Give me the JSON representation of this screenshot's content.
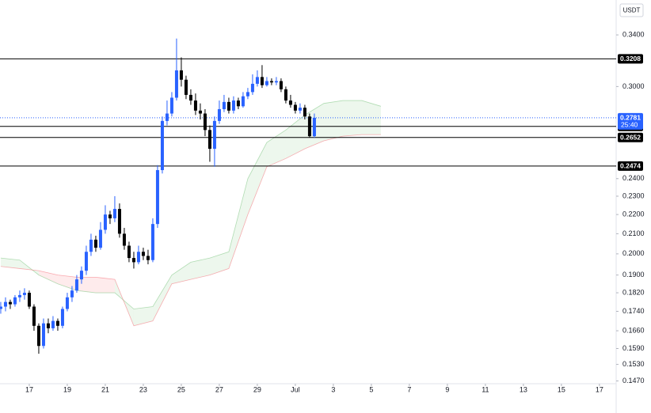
{
  "chart_data": {
    "type": "candlestick",
    "currency": "USDT",
    "log_scale": true,
    "up_color": "#2962ff",
    "down_color": "#000000",
    "ylim": [
      0.146,
      0.37
    ],
    "yticks": [
      {
        "value": 0.34,
        "label": "0.3400"
      },
      {
        "value": 0.3,
        "label": "0.3000"
      },
      {
        "value": 0.24,
        "label": "0.2400"
      },
      {
        "value": 0.23,
        "label": "0.2300"
      },
      {
        "value": 0.22,
        "label": "0.2200"
      },
      {
        "value": 0.21,
        "label": "0.2100"
      },
      {
        "value": 0.2,
        "label": "0.2000"
      },
      {
        "value": 0.19,
        "label": "0.1900"
      },
      {
        "value": 0.182,
        "label": "0.1820"
      },
      {
        "value": 0.174,
        "label": "0.1740"
      },
      {
        "value": 0.166,
        "label": "0.1660"
      },
      {
        "value": 0.159,
        "label": "0.1590"
      },
      {
        "value": 0.153,
        "label": "0.1530"
      },
      {
        "value": 0.147,
        "label": "0.1470"
      }
    ],
    "xlim": [
      15.46,
      47.88
    ],
    "xticks": [
      17,
      19,
      21,
      23,
      25,
      27,
      29,
      {
        "value": 31,
        "label": "Jul"
      },
      {
        "value": 33,
        "label": "3"
      },
      {
        "value": 35,
        "label": "5"
      },
      {
        "value": 37,
        "label": "7"
      },
      {
        "value": 39,
        "label": "9"
      },
      {
        "value": 41,
        "label": "11"
      },
      {
        "value": 43,
        "label": "13"
      },
      {
        "value": 45,
        "label": "15"
      },
      {
        "value": 47,
        "label": "17"
      }
    ],
    "x": [
      15.5,
      15.75,
      16,
      16.25,
      16.5,
      16.75,
      17,
      17.25,
      17.5,
      17.75,
      18,
      18.25,
      18.5,
      18.75,
      19,
      19.25,
      19.5,
      19.75,
      20,
      20.25,
      20.5,
      20.75,
      21,
      21.25,
      21.5,
      21.75,
      22,
      22.25,
      22.5,
      22.75,
      23,
      23.25,
      23.5,
      23.75,
      24,
      24.25,
      24.5,
      24.75,
      25,
      25.25,
      25.5,
      25.75,
      26,
      26.25,
      26.5,
      26.75,
      27,
      27.25,
      27.5,
      27.75,
      28,
      28.25,
      28.5,
      28.75,
      29,
      29.25,
      29.5,
      29.75,
      30,
      30.25,
      30.5,
      30.75,
      31,
      31.25,
      31.5,
      31.75,
      32
    ],
    "open": [
      0.175,
      0.176,
      0.178,
      0.177,
      0.18,
      0.181,
      0.182,
      0.176,
      0.168,
      0.16,
      0.169,
      0.167,
      0.17,
      0.168,
      0.175,
      0.18,
      0.183,
      0.188,
      0.192,
      0.201,
      0.207,
      0.203,
      0.212,
      0.22,
      0.218,
      0.223,
      0.21,
      0.204,
      0.198,
      0.196,
      0.201,
      0.199,
      0.197,
      0.215,
      0.245,
      0.276,
      0.281,
      0.292,
      0.312,
      0.305,
      0.294,
      0.29,
      0.283,
      0.281,
      0.27,
      0.258,
      0.276,
      0.284,
      0.289,
      0.283,
      0.29,
      0.286,
      0.293,
      0.296,
      0.302,
      0.307,
      0.301,
      0.304,
      0.303,
      0.304,
      0.298,
      0.29,
      0.287,
      0.283,
      0.285,
      0.279,
      0.266
    ],
    "high": [
      0.178,
      0.18,
      0.179,
      0.181,
      0.183,
      0.184,
      0.183,
      0.177,
      0.169,
      0.171,
      0.171,
      0.172,
      0.171,
      0.176,
      0.182,
      0.185,
      0.19,
      0.194,
      0.204,
      0.21,
      0.209,
      0.216,
      0.225,
      0.222,
      0.23,
      0.226,
      0.213,
      0.206,
      0.201,
      0.204,
      0.203,
      0.202,
      0.218,
      0.248,
      0.279,
      0.29,
      0.296,
      0.337,
      0.322,
      0.308,
      0.298,
      0.295,
      0.288,
      0.284,
      0.273,
      0.279,
      0.29,
      0.294,
      0.292,
      0.293,
      0.292,
      0.296,
      0.299,
      0.309,
      0.312,
      0.316,
      0.307,
      0.306,
      0.307,
      0.306,
      0.3,
      0.294,
      0.289,
      0.288,
      0.287,
      0.281,
      0.281
    ],
    "low": [
      0.173,
      0.174,
      0.175,
      0.176,
      0.178,
      0.179,
      0.175,
      0.166,
      0.157,
      0.159,
      0.165,
      0.166,
      0.166,
      0.167,
      0.174,
      0.178,
      0.182,
      0.186,
      0.19,
      0.199,
      0.201,
      0.202,
      0.21,
      0.215,
      0.216,
      0.208,
      0.202,
      0.196,
      0.193,
      0.195,
      0.197,
      0.195,
      0.196,
      0.213,
      0.243,
      0.273,
      0.279,
      0.29,
      0.3,
      0.291,
      0.287,
      0.28,
      0.277,
      0.266,
      0.25,
      0.247,
      0.274,
      0.282,
      0.281,
      0.281,
      0.284,
      0.285,
      0.291,
      0.294,
      0.3,
      0.299,
      0.3,
      0.301,
      0.301,
      0.296,
      0.288,
      0.285,
      0.281,
      0.281,
      0.277,
      0.2652,
      0.265
    ],
    "close": [
      0.176,
      0.178,
      0.177,
      0.18,
      0.181,
      0.182,
      0.176,
      0.168,
      0.16,
      0.169,
      0.167,
      0.17,
      0.168,
      0.175,
      0.18,
      0.183,
      0.188,
      0.192,
      0.201,
      0.207,
      0.203,
      0.212,
      0.22,
      0.218,
      0.223,
      0.21,
      0.204,
      0.198,
      0.196,
      0.201,
      0.199,
      0.197,
      0.215,
      0.245,
      0.276,
      0.281,
      0.292,
      0.312,
      0.305,
      0.294,
      0.29,
      0.283,
      0.281,
      0.27,
      0.258,
      0.276,
      0.284,
      0.289,
      0.283,
      0.29,
      0.286,
      0.293,
      0.296,
      0.302,
      0.307,
      0.301,
      0.304,
      0.303,
      0.304,
      0.298,
      0.29,
      0.287,
      0.283,
      0.285,
      0.279,
      0.266,
      0.2781
    ],
    "cloud": {
      "x": [
        15.5,
        16.5,
        17.5,
        18.5,
        19.5,
        20.5,
        21.5,
        22.5,
        23.5,
        24.5,
        25.5,
        26.5,
        27.5,
        28.5,
        29.5,
        30.5,
        31.5,
        32.5,
        33.5,
        34.5,
        35.5
      ],
      "span_a": [
        0.198,
        0.197,
        0.19,
        0.186,
        0.183,
        0.182,
        0.182,
        0.175,
        0.176,
        0.19,
        0.196,
        0.198,
        0.201,
        0.24,
        0.262,
        0.27,
        0.28,
        0.288,
        0.29,
        0.29,
        0.286
      ],
      "span_b": [
        0.194,
        0.193,
        0.192,
        0.19,
        0.189,
        0.189,
        0.188,
        0.168,
        0.17,
        0.186,
        0.188,
        0.19,
        0.193,
        0.22,
        0.247,
        0.252,
        0.258,
        0.263,
        0.266,
        0.267,
        0.267
      ],
      "up_color": "#4caf50",
      "down_color": "#f23645"
    },
    "levels": [
      0.3208,
      0.2724,
      0.2652,
      0.2474
    ],
    "last_price": {
      "value": 0.2781,
      "countdown": "25:40",
      "color": "#2962ff"
    }
  }
}
